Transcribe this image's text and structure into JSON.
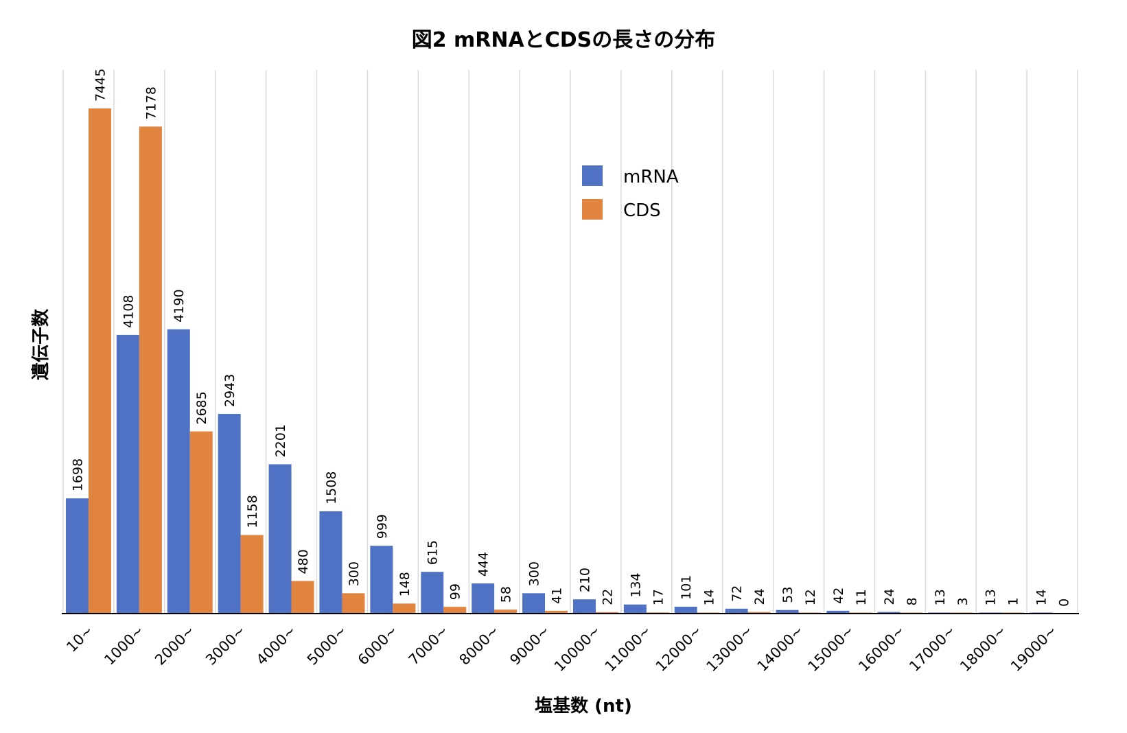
{
  "chart_data": {
    "type": "bar",
    "title": "図2  mRNAとCDSの長さの分布",
    "xlabel": "塩基数 (nt)",
    "ylabel": "遺伝子数",
    "categories": [
      "10~",
      "1000~",
      "2000~",
      "3000~",
      "4000~",
      "5000~",
      "6000~",
      "7000~",
      "8000~",
      "9000~",
      "10000~",
      "11000~",
      "12000~",
      "13000~",
      "14000~",
      "15000~",
      "16000~",
      "17000~",
      "18000~",
      "19000~"
    ],
    "series": [
      {
        "name": "mRNA",
        "color": "#4f72c4",
        "values": [
          1698,
          4108,
          4190,
          2943,
          2201,
          1508,
          999,
          615,
          444,
          300,
          210,
          134,
          101,
          72,
          53,
          42,
          24,
          13,
          13,
          14
        ]
      },
      {
        "name": "CDS",
        "color": "#e0843f",
        "values": [
          7445,
          7178,
          2685,
          1158,
          480,
          300,
          148,
          99,
          58,
          41,
          22,
          17,
          14,
          24,
          12,
          11,
          8,
          3,
          1,
          0
        ]
      }
    ],
    "ylim": [
      0,
      7445
    ],
    "grid": "vertical",
    "legend_position": "upper-center",
    "data_labels": "rotated-vertical"
  }
}
